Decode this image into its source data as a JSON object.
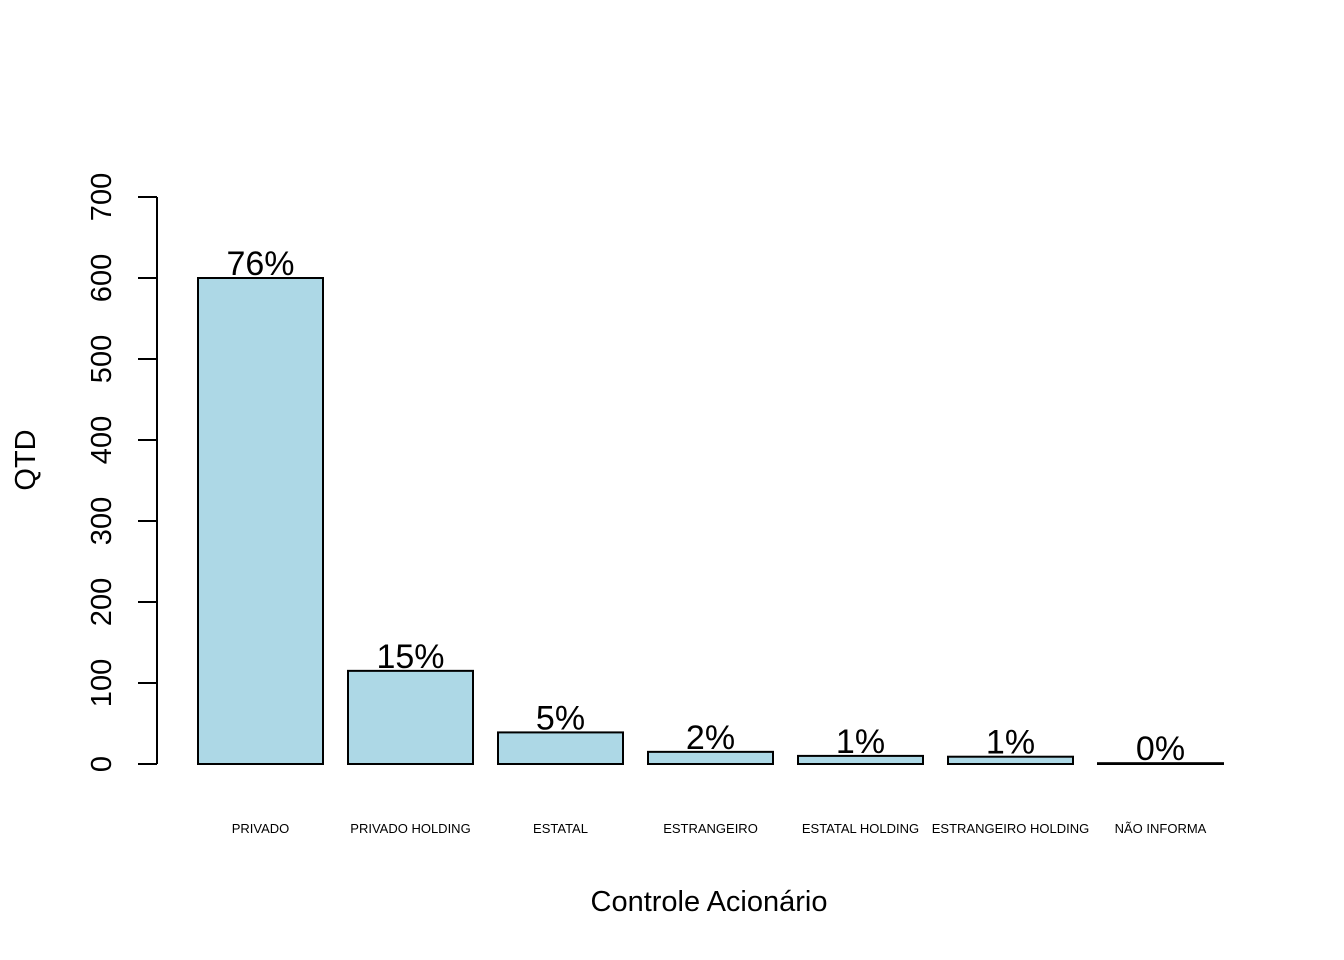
{
  "chart_data": {
    "type": "bar",
    "title": "",
    "xlabel": "Controle Acionário",
    "ylabel": "QTD",
    "ylim": [
      0,
      700
    ],
    "yticks": [
      0,
      100,
      200,
      300,
      400,
      500,
      600,
      700
    ],
    "categories": [
      "PRIVADO",
      "PRIVADO HOLDING",
      "ESTATAL",
      "ESTRANGEIRO",
      "ESTATAL HOLDING",
      "ESTRANGEIRO HOLDING",
      "NÃO INFORMA"
    ],
    "values": [
      600,
      115,
      39,
      15,
      10,
      9,
      1
    ],
    "data_labels": [
      "76%",
      "15%",
      "5%",
      "2%",
      "1%",
      "1%",
      "0%"
    ],
    "grid": false,
    "colors": {
      "bar_fill": "#add8e6",
      "bar_stroke": "#000000"
    }
  }
}
